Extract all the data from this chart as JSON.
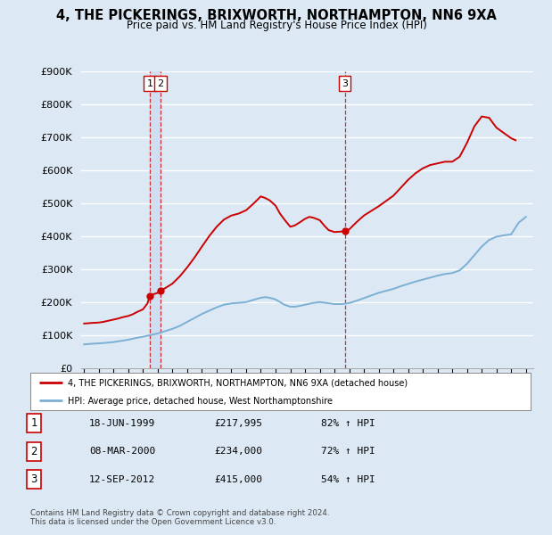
{
  "title": "4, THE PICKERINGS, BRIXWORTH, NORTHAMPTON, NN6 9XA",
  "subtitle": "Price paid vs. HM Land Registry's House Price Index (HPI)",
  "ylim": [
    0,
    900000
  ],
  "yticks": [
    0,
    100000,
    200000,
    300000,
    400000,
    500000,
    600000,
    700000,
    800000,
    900000
  ],
  "ytick_labels": [
    "£0",
    "£100K",
    "£200K",
    "£300K",
    "£400K",
    "£500K",
    "£600K",
    "£700K",
    "£800K",
    "£900K"
  ],
  "xlim_start": 1994.8,
  "xlim_end": 2025.5,
  "background_color": "#dce9f5",
  "plot_bg_color": "#dce9f5",
  "grid_color": "#ffffff",
  "red_line_color": "#cc0000",
  "blue_line_color": "#7bafd4",
  "sale_marker_color": "#cc0000",
  "sale_box_color": "#cc0000",
  "shade_color": "#ccddf0",
  "sales": [
    {
      "num": 1,
      "year": 1999.46,
      "price": 217995,
      "label": "18-JUN-1999",
      "price_label": "£217,995",
      "hpi_label": "82% ↑ HPI"
    },
    {
      "num": 2,
      "year": 2000.18,
      "price": 234000,
      "label": "08-MAR-2000",
      "price_label": "£234,000",
      "hpi_label": "72% ↑ HPI"
    },
    {
      "num": 3,
      "year": 2012.7,
      "price": 415000,
      "label": "12-SEP-2012",
      "price_label": "£415,000",
      "hpi_label": "54% ↑ HPI"
    }
  ],
  "red_line_x": [
    1995.0,
    1995.3,
    1995.6,
    1996.0,
    1996.3,
    1996.6,
    1997.0,
    1997.3,
    1997.6,
    1998.0,
    1998.3,
    1998.6,
    1999.0,
    1999.3,
    1999.46,
    1999.6,
    2000.0,
    2000.18,
    2000.5,
    2001.0,
    2001.5,
    2002.0,
    2002.5,
    2003.0,
    2003.5,
    2004.0,
    2004.5,
    2005.0,
    2005.5,
    2006.0,
    2006.5,
    2007.0,
    2007.3,
    2007.6,
    2008.0,
    2008.3,
    2008.6,
    2009.0,
    2009.3,
    2009.6,
    2010.0,
    2010.3,
    2010.6,
    2011.0,
    2011.3,
    2011.6,
    2012.0,
    2012.3,
    2012.6,
    2012.7,
    2013.0,
    2013.5,
    2014.0,
    2014.5,
    2015.0,
    2015.5,
    2016.0,
    2016.5,
    2017.0,
    2017.5,
    2018.0,
    2018.5,
    2019.0,
    2019.5,
    2020.0,
    2020.5,
    2021.0,
    2021.5,
    2022.0,
    2022.5,
    2023.0,
    2023.5,
    2024.0,
    2024.3
  ],
  "red_line_y": [
    135000,
    136000,
    137000,
    138000,
    140000,
    143000,
    147000,
    150000,
    154000,
    158000,
    163000,
    170000,
    178000,
    196000,
    217995,
    222000,
    228000,
    234000,
    242000,
    256000,
    278000,
    305000,
    335000,
    368000,
    400000,
    428000,
    450000,
    462000,
    468000,
    478000,
    498000,
    520000,
    515000,
    508000,
    492000,
    468000,
    450000,
    428000,
    432000,
    440000,
    452000,
    458000,
    455000,
    448000,
    432000,
    418000,
    412000,
    413000,
    414000,
    415000,
    420000,
    442000,
    462000,
    476000,
    490000,
    506000,
    522000,
    546000,
    570000,
    590000,
    605000,
    615000,
    620000,
    625000,
    625000,
    640000,
    682000,
    732000,
    762000,
    758000,
    728000,
    712000,
    696000,
    690000
  ],
  "blue_line_x": [
    1995.0,
    1995.3,
    1995.6,
    1996.0,
    1996.3,
    1996.6,
    1997.0,
    1997.3,
    1997.6,
    1998.0,
    1998.3,
    1998.6,
    1999.0,
    1999.3,
    1999.6,
    2000.0,
    2000.5,
    2001.0,
    2001.5,
    2002.0,
    2002.5,
    2003.0,
    2003.5,
    2004.0,
    2004.5,
    2005.0,
    2005.3,
    2005.6,
    2006.0,
    2006.3,
    2006.6,
    2007.0,
    2007.3,
    2007.6,
    2008.0,
    2008.3,
    2008.6,
    2009.0,
    2009.3,
    2009.6,
    2010.0,
    2010.5,
    2011.0,
    2011.5,
    2012.0,
    2012.5,
    2013.0,
    2013.5,
    2014.0,
    2014.5,
    2015.0,
    2015.5,
    2016.0,
    2016.5,
    2017.0,
    2017.5,
    2018.0,
    2018.5,
    2019.0,
    2019.5,
    2020.0,
    2020.5,
    2021.0,
    2021.5,
    2022.0,
    2022.5,
    2023.0,
    2023.5,
    2024.0,
    2024.5,
    2025.0
  ],
  "blue_line_y": [
    72000,
    73000,
    74000,
    75000,
    76000,
    77000,
    79000,
    81000,
    83000,
    86000,
    89000,
    92000,
    95000,
    98000,
    101000,
    105000,
    112000,
    119000,
    128000,
    140000,
    152000,
    164000,
    174000,
    184000,
    192000,
    196000,
    197000,
    198000,
    200000,
    204000,
    208000,
    213000,
    215000,
    213000,
    208000,
    200000,
    192000,
    186000,
    186000,
    188000,
    192000,
    197000,
    200000,
    197000,
    194000,
    194000,
    197000,
    204000,
    212000,
    220000,
    228000,
    234000,
    240000,
    248000,
    255000,
    262000,
    268000,
    274000,
    280000,
    285000,
    288000,
    296000,
    316000,
    342000,
    368000,
    388000,
    398000,
    402000,
    405000,
    440000,
    458000
  ],
  "legend": {
    "red_label": "4, THE PICKERINGS, BRIXWORTH, NORTHAMPTON, NN6 9XA (detached house)",
    "blue_label": "HPI: Average price, detached house, West Northamptonshire"
  },
  "footer1": "Contains HM Land Registry data © Crown copyright and database right 2024.",
  "footer2": "This data is licensed under the Open Government Licence v3.0.",
  "xtick_years": [
    1995,
    1996,
    1997,
    1998,
    1999,
    2000,
    2001,
    2002,
    2003,
    2004,
    2005,
    2006,
    2007,
    2008,
    2009,
    2010,
    2011,
    2012,
    2013,
    2014,
    2015,
    2016,
    2017,
    2018,
    2019,
    2020,
    2021,
    2022,
    2023,
    2024,
    2025
  ]
}
